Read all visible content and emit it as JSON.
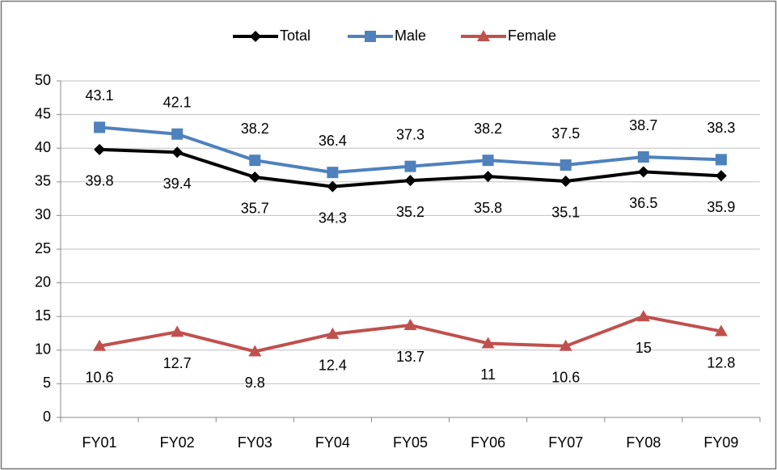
{
  "chart_data": {
    "type": "line",
    "categories": [
      "FY01",
      "FY02",
      "FY03",
      "FY04",
      "FY05",
      "FY06",
      "FY07",
      "FY08",
      "FY09"
    ],
    "series": [
      {
        "name": "Total",
        "color": "#000000",
        "marker": "diamond",
        "label_side": "below",
        "values": [
          39.8,
          39.4,
          35.7,
          34.3,
          35.2,
          35.8,
          35.1,
          36.5,
          35.9
        ]
      },
      {
        "name": "Male",
        "color": "#4f81bd",
        "marker": "square",
        "label_side": "above",
        "values": [
          43.1,
          42.1,
          38.2,
          36.4,
          37.3,
          38.2,
          37.5,
          38.7,
          38.3
        ]
      },
      {
        "name": "Female",
        "color": "#c0504d",
        "marker": "triangle",
        "label_side": "below",
        "values": [
          10.6,
          12.7,
          9.8,
          12.4,
          13.7,
          11,
          10.6,
          15,
          12.8
        ]
      }
    ],
    "ylim": [
      0,
      50
    ],
    "yticks": [
      0,
      5,
      10,
      15,
      20,
      25,
      30,
      35,
      40,
      45,
      50
    ],
    "grid": true,
    "legend": "top"
  }
}
